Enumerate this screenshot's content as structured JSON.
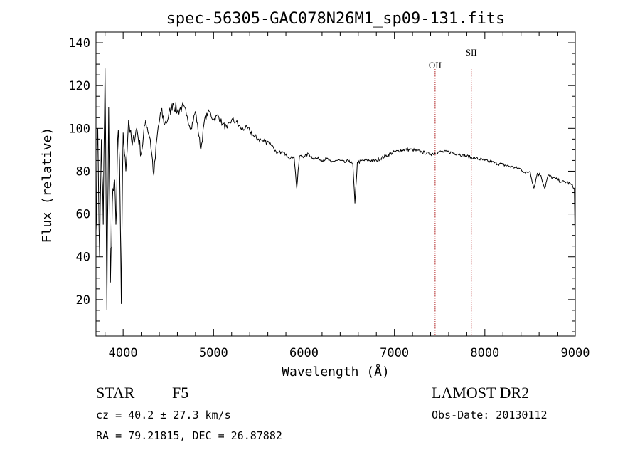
{
  "chart_data": {
    "type": "line",
    "title": "spec-56305-GAC078N26M1_sp09-131.fits",
    "xlabel": "Wavelength (Å)",
    "ylabel": "Flux (relative)",
    "xlim": [
      3700,
      9000
    ],
    "ylim": [
      3,
      145
    ],
    "x_ticks": [
      4000,
      5000,
      6000,
      7000,
      8000,
      9000
    ],
    "y_ticks": [
      20,
      40,
      60,
      80,
      100,
      120,
      140
    ],
    "grid": false,
    "series": [
      {
        "x": [
          3700,
          3720,
          3740,
          3760,
          3780,
          3800,
          3820,
          3840,
          3860,
          3880,
          3900,
          3920,
          3940,
          3960,
          3980,
          4000,
          4030,
          4060,
          4100,
          4150,
          4200,
          4250,
          4300,
          4340,
          4380,
          4420,
          4460,
          4500,
          4550,
          4600,
          4650,
          4700,
          4750,
          4800,
          4860,
          4900,
          4950,
          5000,
          5050,
          5100,
          5150,
          5200,
          5250,
          5300,
          5350,
          5400,
          5450,
          5500,
          5550,
          5600,
          5650,
          5700,
          5750,
          5800,
          5850,
          5890,
          5920,
          5950,
          6000,
          6050,
          6100,
          6150,
          6200,
          6250,
          6300,
          6350,
          6400,
          6450,
          6500,
          6540,
          6563,
          6590,
          6650,
          6700,
          6800,
          6900,
          7000,
          7100,
          7200,
          7300,
          7400,
          7500,
          7600,
          7700,
          7800,
          7900,
          8000,
          8100,
          8200,
          8300,
          8400,
          8450,
          8500,
          8542,
          8580,
          8620,
          8662,
          8700,
          8750,
          8800,
          8850,
          8900,
          8950,
          8990,
          9000
        ],
        "y": [
          52,
          100,
          40,
          95,
          55,
          128,
          15,
          110,
          28,
          65,
          75,
          55,
          95,
          85,
          18,
          98,
          80,
          104,
          92,
          100,
          88,
          104,
          95,
          78,
          98,
          108,
          102,
          105,
          112,
          108,
          110,
          106,
          100,
          108,
          90,
          104,
          108,
          104,
          106,
          102,
          100,
          104,
          103,
          100,
          100,
          99,
          96,
          95,
          94,
          94,
          92,
          88,
          89,
          88,
          86,
          87,
          72,
          87,
          87,
          88,
          86,
          86,
          85,
          86,
          84,
          85,
          85,
          84,
          85,
          83,
          65,
          84,
          85,
          85,
          85,
          87,
          89,
          90,
          90,
          89,
          88,
          89,
          89,
          88,
          87,
          86,
          85,
          84,
          83,
          82,
          81,
          79,
          80,
          72,
          79,
          78,
          72,
          78,
          77,
          76,
          75,
          75,
          74,
          72,
          40
        ]
      }
    ],
    "annotations": [
      {
        "label": "OII",
        "x": 7450
      },
      {
        "label": "SII",
        "x": 7850
      }
    ],
    "info": {
      "object_class": "STAR",
      "subclass": "F5",
      "cz_line": "cz = 40.2 ± 27.3 km/s",
      "radec_line": "RA =  79.21815, DEC =  26.87882",
      "survey": "LAMOST DR2",
      "obs_date_line": "Obs-Date: 20130112"
    }
  }
}
